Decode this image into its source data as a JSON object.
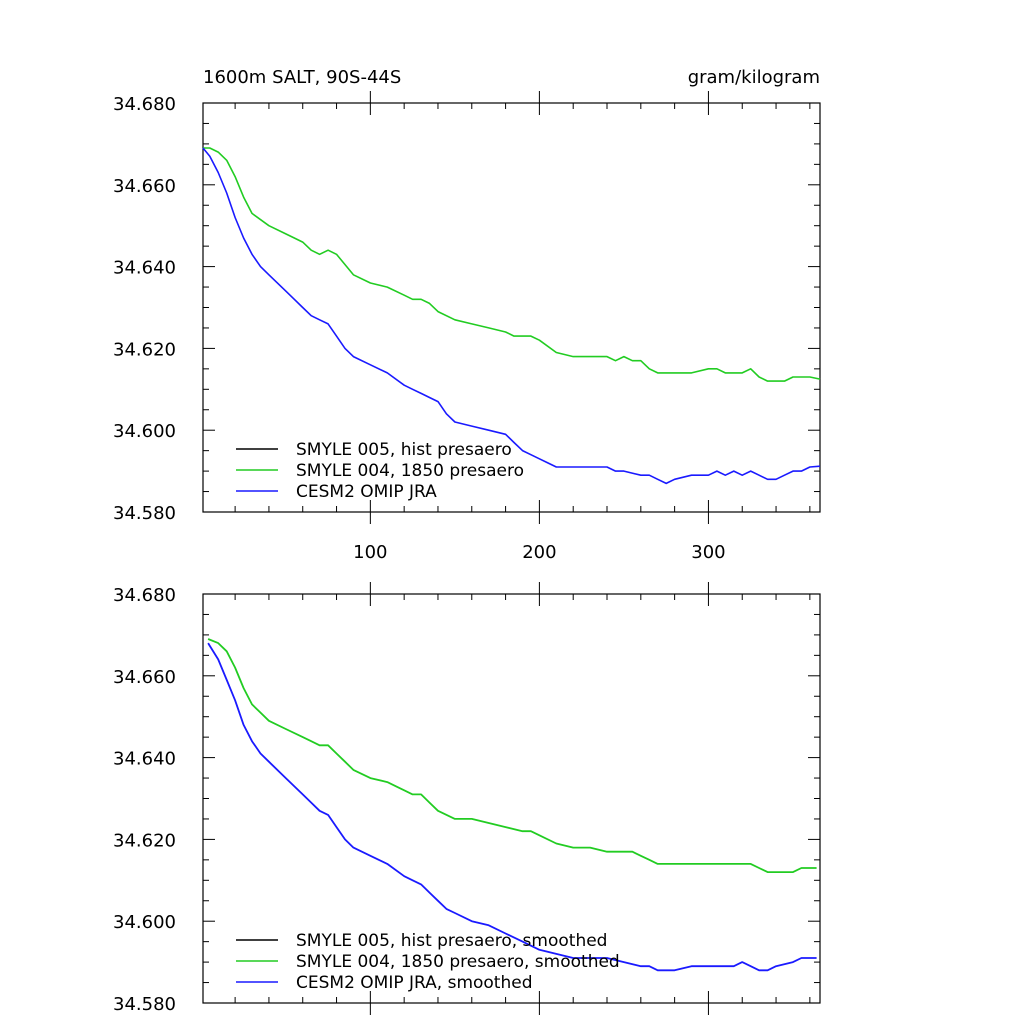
{
  "colors": {
    "smyle005": "#000000",
    "smyle004": "#22cc22",
    "cesm2": "#1a1aff"
  },
  "top": {
    "title_left": "1600m SALT, 90S-44S",
    "title_right": "gram/kilogram"
  },
  "chart_data": [
    {
      "type": "line",
      "title": "1600m SALT, 90S-44S",
      "units": "gram/kilogram",
      "xlim": [
        1,
        366
      ],
      "ylim": [
        34.58,
        34.68
      ],
      "xticks": [
        100,
        200,
        300
      ],
      "xticklabels": [
        "100",
        "200",
        "300"
      ],
      "yticks": [
        34.58,
        34.6,
        34.62,
        34.64,
        34.66,
        34.68
      ],
      "yticklabels": [
        "34.580",
        "34.600",
        "34.620",
        "34.640",
        "34.660",
        "34.680"
      ],
      "legend_position": "bottom-left",
      "series": [
        {
          "name": "SMYLE 005, hist presaero",
          "color": "#000000",
          "x": [],
          "y": []
        },
        {
          "name": "SMYLE 004, 1850 presaero",
          "color": "#22cc22",
          "x": [
            1,
            5,
            10,
            15,
            20,
            25,
            30,
            40,
            50,
            55,
            60,
            65,
            70,
            75,
            80,
            90,
            100,
            110,
            120,
            125,
            130,
            135,
            140,
            150,
            160,
            170,
            180,
            185,
            190,
            195,
            200,
            210,
            220,
            230,
            240,
            245,
            250,
            255,
            260,
            265,
            270,
            280,
            290,
            300,
            305,
            310,
            315,
            320,
            325,
            330,
            335,
            340,
            345,
            350,
            355,
            360,
            366
          ],
          "y": [
            34.669,
            34.669,
            34.668,
            34.666,
            34.662,
            34.657,
            34.653,
            34.65,
            34.648,
            34.647,
            34.646,
            34.644,
            34.643,
            34.644,
            34.643,
            34.638,
            34.636,
            34.635,
            34.633,
            34.632,
            34.632,
            34.631,
            34.629,
            34.627,
            34.626,
            34.625,
            34.624,
            34.623,
            34.623,
            34.623,
            34.622,
            34.619,
            34.618,
            34.618,
            34.618,
            34.617,
            34.618,
            34.617,
            34.617,
            34.615,
            34.614,
            34.614,
            34.614,
            34.615,
            34.615,
            34.614,
            34.614,
            34.614,
            34.615,
            34.613,
            34.612,
            34.612,
            34.612,
            34.613,
            34.613,
            34.613,
            34.6125
          ]
        },
        {
          "name": "CESM2 OMIP JRA",
          "color": "#1a1aff",
          "x": [
            1,
            5,
            10,
            15,
            20,
            25,
            30,
            35,
            40,
            50,
            55,
            60,
            65,
            70,
            75,
            80,
            85,
            90,
            100,
            110,
            120,
            125,
            130,
            135,
            140,
            145,
            150,
            160,
            170,
            180,
            185,
            190,
            195,
            200,
            205,
            210,
            220,
            230,
            240,
            245,
            250,
            260,
            265,
            270,
            275,
            280,
            290,
            300,
            305,
            310,
            315,
            320,
            325,
            330,
            335,
            340,
            345,
            350,
            355,
            360,
            366
          ],
          "y": [
            34.669,
            34.667,
            34.663,
            34.658,
            34.652,
            34.647,
            34.643,
            34.64,
            34.638,
            34.634,
            34.632,
            34.63,
            34.628,
            34.627,
            34.626,
            34.623,
            34.62,
            34.618,
            34.616,
            34.614,
            34.611,
            34.61,
            34.609,
            34.608,
            34.607,
            34.604,
            34.602,
            34.601,
            34.6,
            34.599,
            34.597,
            34.595,
            34.594,
            34.593,
            34.592,
            34.591,
            34.591,
            34.591,
            34.591,
            34.59,
            34.59,
            34.589,
            34.589,
            34.588,
            34.587,
            34.588,
            34.589,
            34.589,
            34.59,
            34.589,
            34.59,
            34.589,
            34.59,
            34.589,
            34.588,
            34.588,
            34.589,
            34.59,
            34.59,
            34.591,
            34.5912
          ]
        }
      ]
    },
    {
      "type": "line",
      "title": "",
      "xlim": [
        1,
        366
      ],
      "ylim": [
        34.58,
        34.68
      ],
      "xticks": [
        100,
        200,
        300
      ],
      "xticklabels": [],
      "yticks": [
        34.58,
        34.6,
        34.62,
        34.64,
        34.66,
        34.68
      ],
      "yticklabels": [
        "34.580",
        "34.600",
        "34.620",
        "34.640",
        "34.660",
        "34.680"
      ],
      "legend_position": "bottom-left",
      "series": [
        {
          "name": "SMYLE 005, hist presaero, smoothed",
          "color": "#000000",
          "x": [],
          "y": []
        },
        {
          "name": "SMYLE 004, 1850 presaero, smoothed",
          "color": "#22cc22",
          "x": [
            4,
            10,
            15,
            20,
            25,
            30,
            35,
            40,
            50,
            60,
            65,
            70,
            75,
            80,
            85,
            90,
            100,
            110,
            115,
            120,
            125,
            130,
            135,
            140,
            150,
            160,
            170,
            180,
            190,
            195,
            200,
            210,
            220,
            230,
            240,
            250,
            255,
            260,
            265,
            270,
            280,
            290,
            300,
            310,
            315,
            320,
            325,
            330,
            335,
            340,
            350,
            355,
            360,
            364
          ],
          "y": [
            34.669,
            34.668,
            34.666,
            34.662,
            34.657,
            34.653,
            34.651,
            34.649,
            34.647,
            34.645,
            34.644,
            34.643,
            34.643,
            34.641,
            34.639,
            34.637,
            34.635,
            34.634,
            34.633,
            34.632,
            34.631,
            34.631,
            34.629,
            34.627,
            34.625,
            34.625,
            34.624,
            34.623,
            34.622,
            34.622,
            34.621,
            34.619,
            34.618,
            34.618,
            34.617,
            34.617,
            34.617,
            34.616,
            34.615,
            34.614,
            34.614,
            34.614,
            34.614,
            34.614,
            34.614,
            34.614,
            34.614,
            34.613,
            34.612,
            34.612,
            34.612,
            34.613,
            34.613,
            34.613
          ]
        },
        {
          "name": "CESM2 OMIP JRA, smoothed",
          "color": "#1a1aff",
          "x": [
            4,
            10,
            15,
            20,
            25,
            30,
            35,
            40,
            50,
            60,
            65,
            70,
            75,
            80,
            85,
            90,
            100,
            110,
            120,
            125,
            130,
            135,
            140,
            145,
            150,
            160,
            170,
            180,
            190,
            200,
            210,
            220,
            230,
            240,
            250,
            260,
            265,
            270,
            275,
            280,
            290,
            300,
            310,
            315,
            320,
            325,
            330,
            335,
            340,
            350,
            355,
            360,
            364
          ],
          "y": [
            34.668,
            34.664,
            34.659,
            34.654,
            34.648,
            34.644,
            34.641,
            34.639,
            34.635,
            34.631,
            34.629,
            34.627,
            34.626,
            34.623,
            34.62,
            34.618,
            34.616,
            34.614,
            34.611,
            34.61,
            34.609,
            34.607,
            34.605,
            34.603,
            34.602,
            34.6,
            34.599,
            34.597,
            34.595,
            34.593,
            34.592,
            34.591,
            34.591,
            34.591,
            34.59,
            34.589,
            34.589,
            34.588,
            34.588,
            34.588,
            34.589,
            34.589,
            34.589,
            34.589,
            34.59,
            34.589,
            34.588,
            34.588,
            34.589,
            34.59,
            34.591,
            34.591,
            34.591
          ]
        }
      ]
    }
  ]
}
